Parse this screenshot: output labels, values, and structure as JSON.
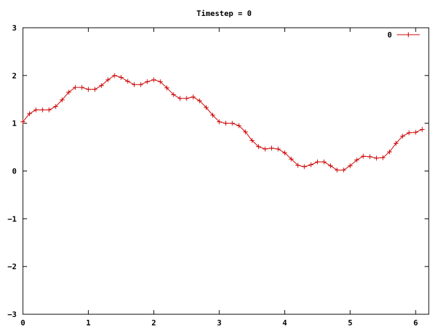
{
  "chart_data": {
    "type": "line",
    "title": "Timestep = 0",
    "xlabel": "",
    "ylabel": "",
    "xlim": [
      0,
      6.2
    ],
    "ylim": [
      -3,
      3
    ],
    "xticks": [
      {
        "value": 0,
        "label": "0"
      },
      {
        "value": 1,
        "label": "1"
      },
      {
        "value": 2,
        "label": "2"
      },
      {
        "value": 3,
        "label": "3"
      },
      {
        "value": 4,
        "label": "4"
      },
      {
        "value": 5,
        "label": "5"
      },
      {
        "value": 6,
        "label": "6"
      }
    ],
    "yticks": [
      {
        "value": 3,
        "label": "3"
      },
      {
        "value": 2,
        "label": "2"
      },
      {
        "value": 1,
        "label": "1"
      },
      {
        "value": 0,
        "label": "0"
      },
      {
        "value": -1,
        "label": "−1"
      },
      {
        "value": -2,
        "label": "−2"
      },
      {
        "value": -3,
        "label": "−3"
      }
    ],
    "grid": false,
    "legend_position": "top-right",
    "series": [
      {
        "name": "0",
        "color": "#cc0000",
        "marker": "plus",
        "x": [
          0.0,
          0.1,
          0.2,
          0.3,
          0.4,
          0.5,
          0.6,
          0.7,
          0.8,
          0.9,
          1.0,
          1.1,
          1.2,
          1.3,
          1.4,
          1.5,
          1.6,
          1.7,
          1.8,
          1.9,
          2.0,
          2.1,
          2.2,
          2.3,
          2.4,
          2.5,
          2.6,
          2.7,
          2.8,
          2.9,
          3.0,
          3.1,
          3.2,
          3.3,
          3.4,
          3.5,
          3.6,
          3.7,
          3.8,
          3.9,
          4.0,
          4.1,
          4.2,
          4.3,
          4.4,
          4.5,
          4.6,
          4.7,
          4.8,
          4.9,
          5.0,
          5.1,
          5.2,
          5.3,
          5.4,
          5.5,
          5.6,
          5.7,
          5.8,
          5.9,
          6.0,
          6.1
        ],
        "y": [
          1.03,
          1.2,
          1.28,
          1.28,
          1.28,
          1.35,
          1.49,
          1.65,
          1.75,
          1.75,
          1.71,
          1.71,
          1.79,
          1.91,
          2.0,
          1.96,
          1.88,
          1.81,
          1.81,
          1.87,
          1.91,
          1.87,
          1.74,
          1.6,
          1.52,
          1.52,
          1.55,
          1.47,
          1.33,
          1.17,
          1.03,
          1.0,
          1.0,
          0.95,
          0.82,
          0.64,
          0.51,
          0.46,
          0.48,
          0.46,
          0.38,
          0.25,
          0.12,
          0.09,
          0.13,
          0.19,
          0.19,
          0.11,
          0.02,
          0.02,
          0.11,
          0.23,
          0.31,
          0.3,
          0.27,
          0.28,
          0.4,
          0.58,
          0.73,
          0.8,
          0.81,
          0.87
        ]
      }
    ]
  }
}
